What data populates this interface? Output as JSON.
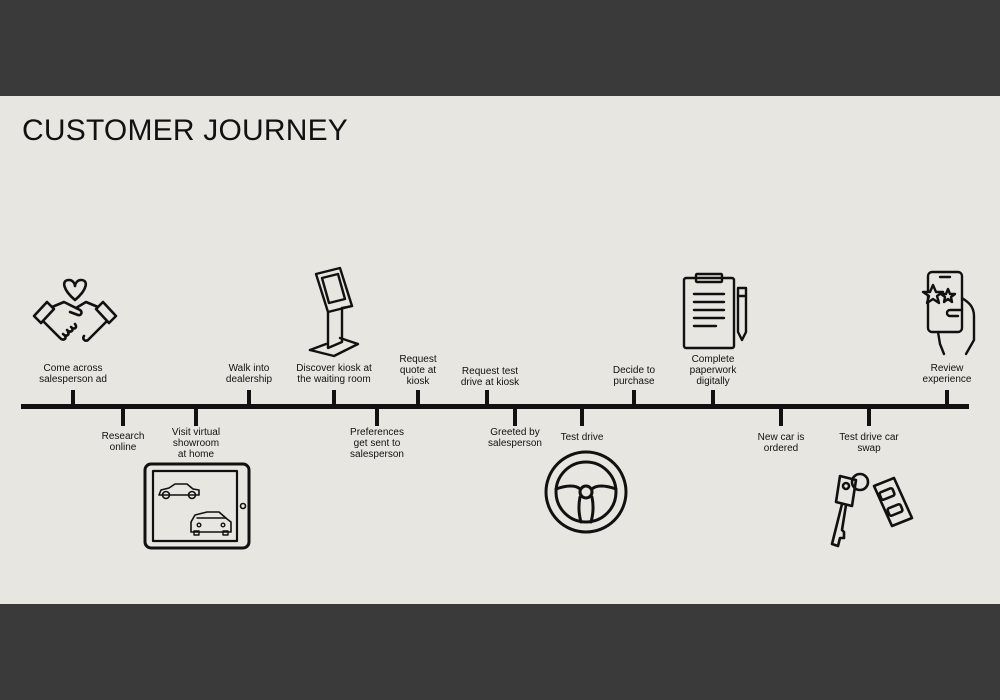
{
  "title": "CUSTOMER JOURNEY",
  "steps": [
    {
      "label": "Come across\nsalesperson ad",
      "position": "above",
      "icon": "handshake-heart-icon"
    },
    {
      "label": "Research\nonline",
      "position": "below"
    },
    {
      "label": "Visit virtual\nshowroom\nat home",
      "position": "below",
      "icon": "tablet-cars-icon"
    },
    {
      "label": "Walk into\ndealership",
      "position": "above"
    },
    {
      "label": "Discover kiosk at\nthe waiting room",
      "position": "above",
      "icon": "kiosk-icon"
    },
    {
      "label": "Preferences\nget sent to\nsalesperson",
      "position": "below"
    },
    {
      "label": "Request\nquote at\nkiosk",
      "position": "above"
    },
    {
      "label": "Request test\ndrive at kiosk",
      "position": "above"
    },
    {
      "label": "Greeted by\nsalesperson",
      "position": "below"
    },
    {
      "label": "Test drive",
      "position": "below",
      "icon": "steering-wheel-icon"
    },
    {
      "label": "Decide to\npurchase",
      "position": "above"
    },
    {
      "label": "Complete\npaperwork\ndigitally",
      "position": "above",
      "icon": "clipboard-pen-icon"
    },
    {
      "label": "New car is\nordered",
      "position": "below"
    },
    {
      "label": "Test drive car\nswap",
      "position": "below",
      "icon": "car-keys-icon"
    },
    {
      "label": "Review\nexperience",
      "position": "above",
      "icon": "phone-rating-icon"
    }
  ],
  "colors": {
    "panel": "#e8e6e1",
    "frame": "#3a3a3a",
    "ink": "#111111"
  }
}
